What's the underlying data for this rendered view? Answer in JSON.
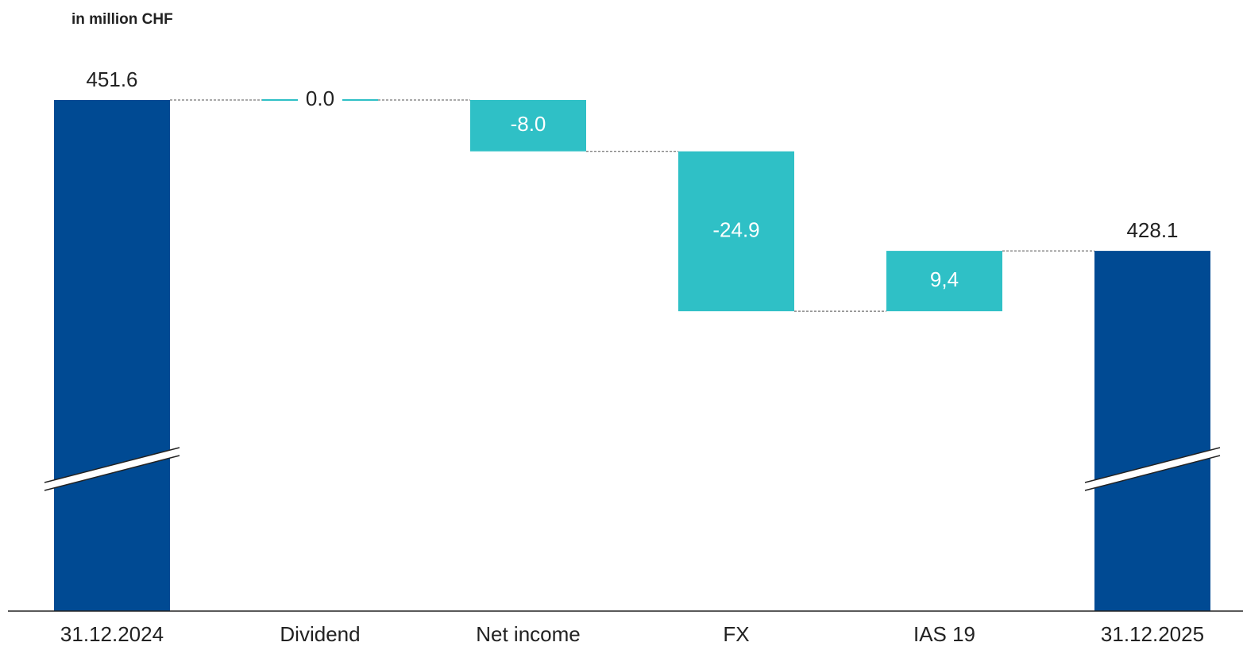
{
  "chart_data": {
    "type": "waterfall",
    "subtitle": "in million CHF",
    "categories": [
      "31.12.2024",
      "Dividend",
      "Net income",
      "FX",
      "IAS 19",
      "31.12.2025"
    ],
    "values": [
      451.6,
      0.0,
      -8.0,
      -24.9,
      9.4,
      428.1
    ],
    "value_labels": [
      "451.6",
      "0.0",
      "-8.0",
      "-24.9",
      "9,4",
      "428.1"
    ],
    "measure": [
      "absolute",
      "relative",
      "relative",
      "relative",
      "relative",
      "absolute"
    ],
    "total_color": "#004a93",
    "delta_color": "#2fc0c6",
    "ylim": [
      372,
      460
    ],
    "axis_break": true
  }
}
